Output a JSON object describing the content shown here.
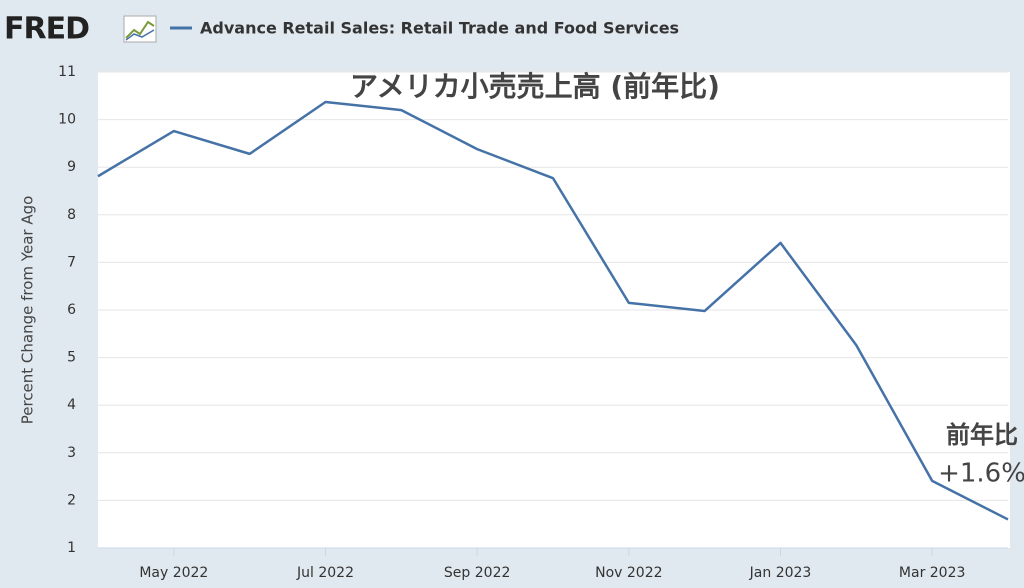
{
  "chart_data": {
    "type": "line",
    "logo": "FRED",
    "title": "アメリカ小売売上高 (前年比)",
    "annotations": [
      "前年比",
      "+1.6%"
    ],
    "y_label": "Percent Change from Year Ago",
    "categories": [
      null,
      "May 2022",
      null,
      "Jul 2022",
      null,
      "Sep 2022",
      null,
      "Nov 2022",
      null,
      "Jan 2023",
      null,
      "Mar 2023",
      null
    ],
    "series": [
      {
        "name": "Advance Retail Sales: Retail Trade and Food Services",
        "color": "#4572a7",
        "values": [
          8.81,
          9.76,
          9.28,
          10.37,
          10.2,
          9.38,
          8.77,
          6.15,
          5.98,
          7.41,
          5.26,
          2.41,
          1.6
        ]
      }
    ],
    "ylim": [
      1,
      11
    ],
    "yticks": [
      1,
      2,
      3,
      4,
      5,
      6,
      7,
      8,
      9,
      10,
      11
    ],
    "grid": true
  }
}
